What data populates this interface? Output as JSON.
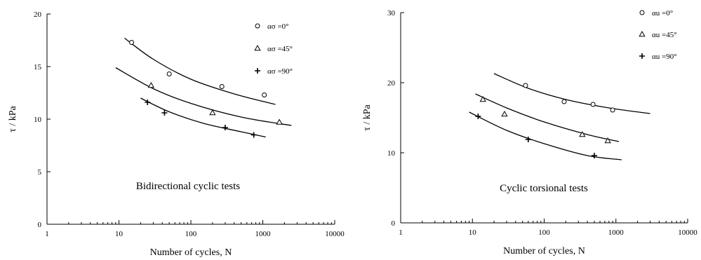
{
  "chart_data": [
    {
      "type": "scatter",
      "xscale": "log",
      "xlim": [
        1,
        10000
      ],
      "ylim": [
        0,
        20
      ],
      "xticks": [
        "1",
        "10",
        "100",
        "1000",
        "10000"
      ],
      "yticks": [
        "0",
        "5",
        "10",
        "15",
        "20"
      ],
      "xlabel": "Number of cycles, N",
      "ylabel": "τ / kPa",
      "annotation": "Bidirectional cyclic tests",
      "legend_position": "top-right",
      "series": [
        {
          "name": "ασ =0°",
          "marker": "circle",
          "points": [
            [
              15,
              17.3
            ],
            [
              50,
              14.3
            ],
            [
              270,
              13.1
            ],
            [
              1050,
              12.3
            ]
          ],
          "fit": [
            [
              12,
              17.7
            ],
            [
              30,
              15.7
            ],
            [
              100,
              13.8
            ],
            [
              400,
              12.4
            ],
            [
              1500,
              11.4
            ]
          ]
        },
        {
          "name": "ασ =45°",
          "marker": "triangle",
          "points": [
            [
              28,
              13.2
            ],
            [
              200,
              10.6
            ],
            [
              1700,
              9.7
            ]
          ],
          "fit": [
            [
              9,
              14.9
            ],
            [
              30,
              12.9
            ],
            [
              100,
              11.5
            ],
            [
              500,
              10.2
            ],
            [
              2500,
              9.4
            ]
          ]
        },
        {
          "name": "ασ =90°",
          "marker": "plus",
          "points": [
            [
              25,
              11.6
            ],
            [
              43,
              10.6
            ],
            [
              300,
              9.2
            ],
            [
              750,
              8.5
            ]
          ],
          "fit": [
            [
              20,
              12.0
            ],
            [
              50,
              10.7
            ],
            [
              150,
              9.6
            ],
            [
              500,
              8.8
            ],
            [
              1100,
              8.3
            ]
          ]
        }
      ]
    },
    {
      "type": "scatter",
      "xscale": "log",
      "xlim": [
        1,
        10000
      ],
      "ylim": [
        0,
        30
      ],
      "xticks": [
        "1",
        "10",
        "100",
        "1000",
        "10000"
      ],
      "yticks": [
        "0",
        "10",
        "20",
        "30"
      ],
      "xlabel": "Number of cycles, N",
      "ylabel": "τ / kPa",
      "annotation": "Cyclic torsional tests",
      "legend_position": "top-right",
      "series": [
        {
          "name": "αu =0°",
          "marker": "circle",
          "points": [
            [
              55,
              19.6
            ],
            [
              190,
              17.3
            ],
            [
              480,
              16.9
            ],
            [
              900,
              16.1
            ]
          ],
          "fit": [
            [
              20,
              21.3
            ],
            [
              60,
              19.2
            ],
            [
              200,
              17.6
            ],
            [
              800,
              16.4
            ],
            [
              3000,
              15.6
            ]
          ]
        },
        {
          "name": "αu =45°",
          "marker": "triangle",
          "points": [
            [
              14,
              17.6
            ],
            [
              28,
              15.5
            ],
            [
              340,
              12.6
            ],
            [
              770,
              11.7
            ]
          ],
          "fit": [
            [
              11,
              18.4
            ],
            [
              30,
              16.4
            ],
            [
              100,
              14.4
            ],
            [
              400,
              12.6
            ],
            [
              1100,
              11.6
            ]
          ]
        },
        {
          "name": "αu =90°",
          "marker": "plus",
          "points": [
            [
              12,
              15.2
            ],
            [
              60,
              11.9
            ],
            [
              500,
              9.6
            ]
          ],
          "fit": [
            [
              9,
              15.8
            ],
            [
              30,
              13.2
            ],
            [
              100,
              11.3
            ],
            [
              400,
              9.6
            ],
            [
              1200,
              9.0
            ]
          ]
        }
      ]
    }
  ]
}
